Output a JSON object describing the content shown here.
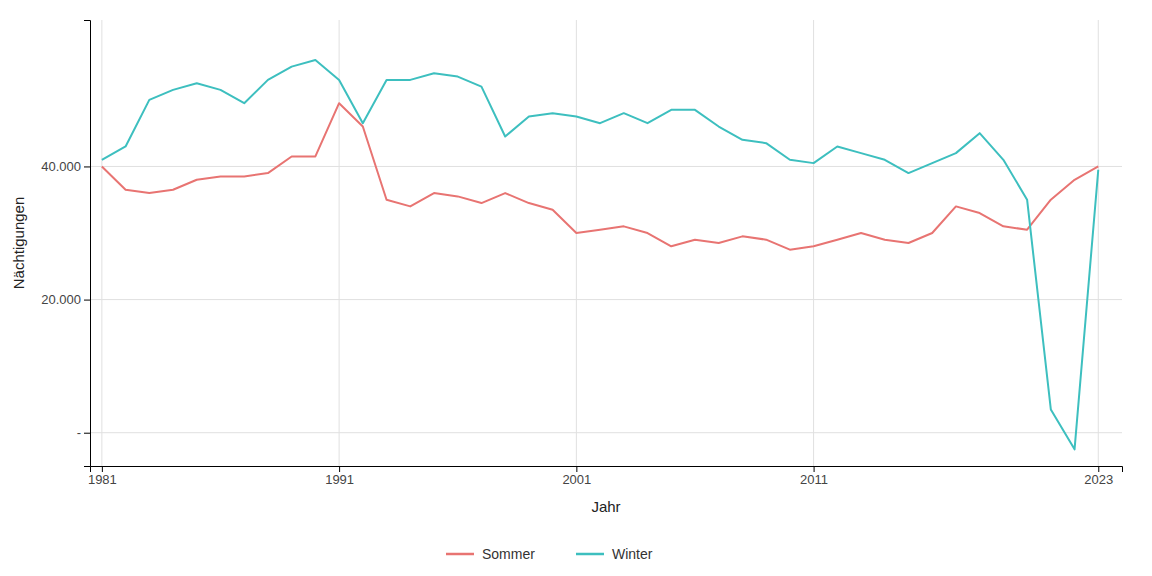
{
  "chart_data": {
    "type": "line",
    "x": [
      1981,
      1982,
      1983,
      1984,
      1985,
      1986,
      1987,
      1988,
      1989,
      1990,
      1991,
      1992,
      1993,
      1994,
      1995,
      1996,
      1997,
      1998,
      1999,
      2000,
      2001,
      2002,
      2003,
      2004,
      2005,
      2006,
      2007,
      2008,
      2009,
      2010,
      2011,
      2012,
      2013,
      2014,
      2015,
      2016,
      2017,
      2018,
      2019,
      2020,
      2021,
      2022,
      2023
    ],
    "series": [
      {
        "name": "Sommer",
        "color": "#E87472",
        "values": [
          40000,
          36500,
          36000,
          36500,
          38000,
          38500,
          38500,
          39000,
          41500,
          41500,
          49500,
          46000,
          35000,
          34000,
          36000,
          35500,
          34500,
          36000,
          34500,
          33500,
          30000,
          30500,
          31000,
          30000,
          28000,
          29000,
          28500,
          29500,
          29000,
          27500,
          28000,
          29000,
          30000,
          29000,
          28500,
          30000,
          34000,
          33000,
          31000,
          30500,
          35000,
          38000,
          40000
        ]
      },
      {
        "name": "Winter",
        "color": "#3DBFBF",
        "values": [
          41000,
          43000,
          50000,
          51500,
          52500,
          51500,
          49500,
          53000,
          55000,
          56000,
          53000,
          46500,
          53000,
          53000,
          54000,
          53500,
          52000,
          44500,
          47500,
          48000,
          47500,
          46500,
          48000,
          46500,
          48500,
          48500,
          46000,
          44000,
          43500,
          41000,
          40500,
          43000,
          42000,
          41000,
          39000,
          40500,
          42000,
          45000,
          41000,
          35000,
          3500,
          -2500,
          39500
        ]
      }
    ],
    "xlabel": "Jahr",
    "ylabel": "Nächtigungen",
    "xlim": [
      1980.5,
      2024
    ],
    "xticks": [
      1981,
      1991,
      2001,
      2011,
      2023
    ],
    "ylim": [
      -5000,
      62000
    ],
    "yticks": [
      {
        "value": 0,
        "label": "-"
      },
      {
        "value": 20000,
        "label": "20.000"
      },
      {
        "value": 40000,
        "label": "40.000"
      }
    ],
    "grid": true,
    "legend": "bottom"
  }
}
